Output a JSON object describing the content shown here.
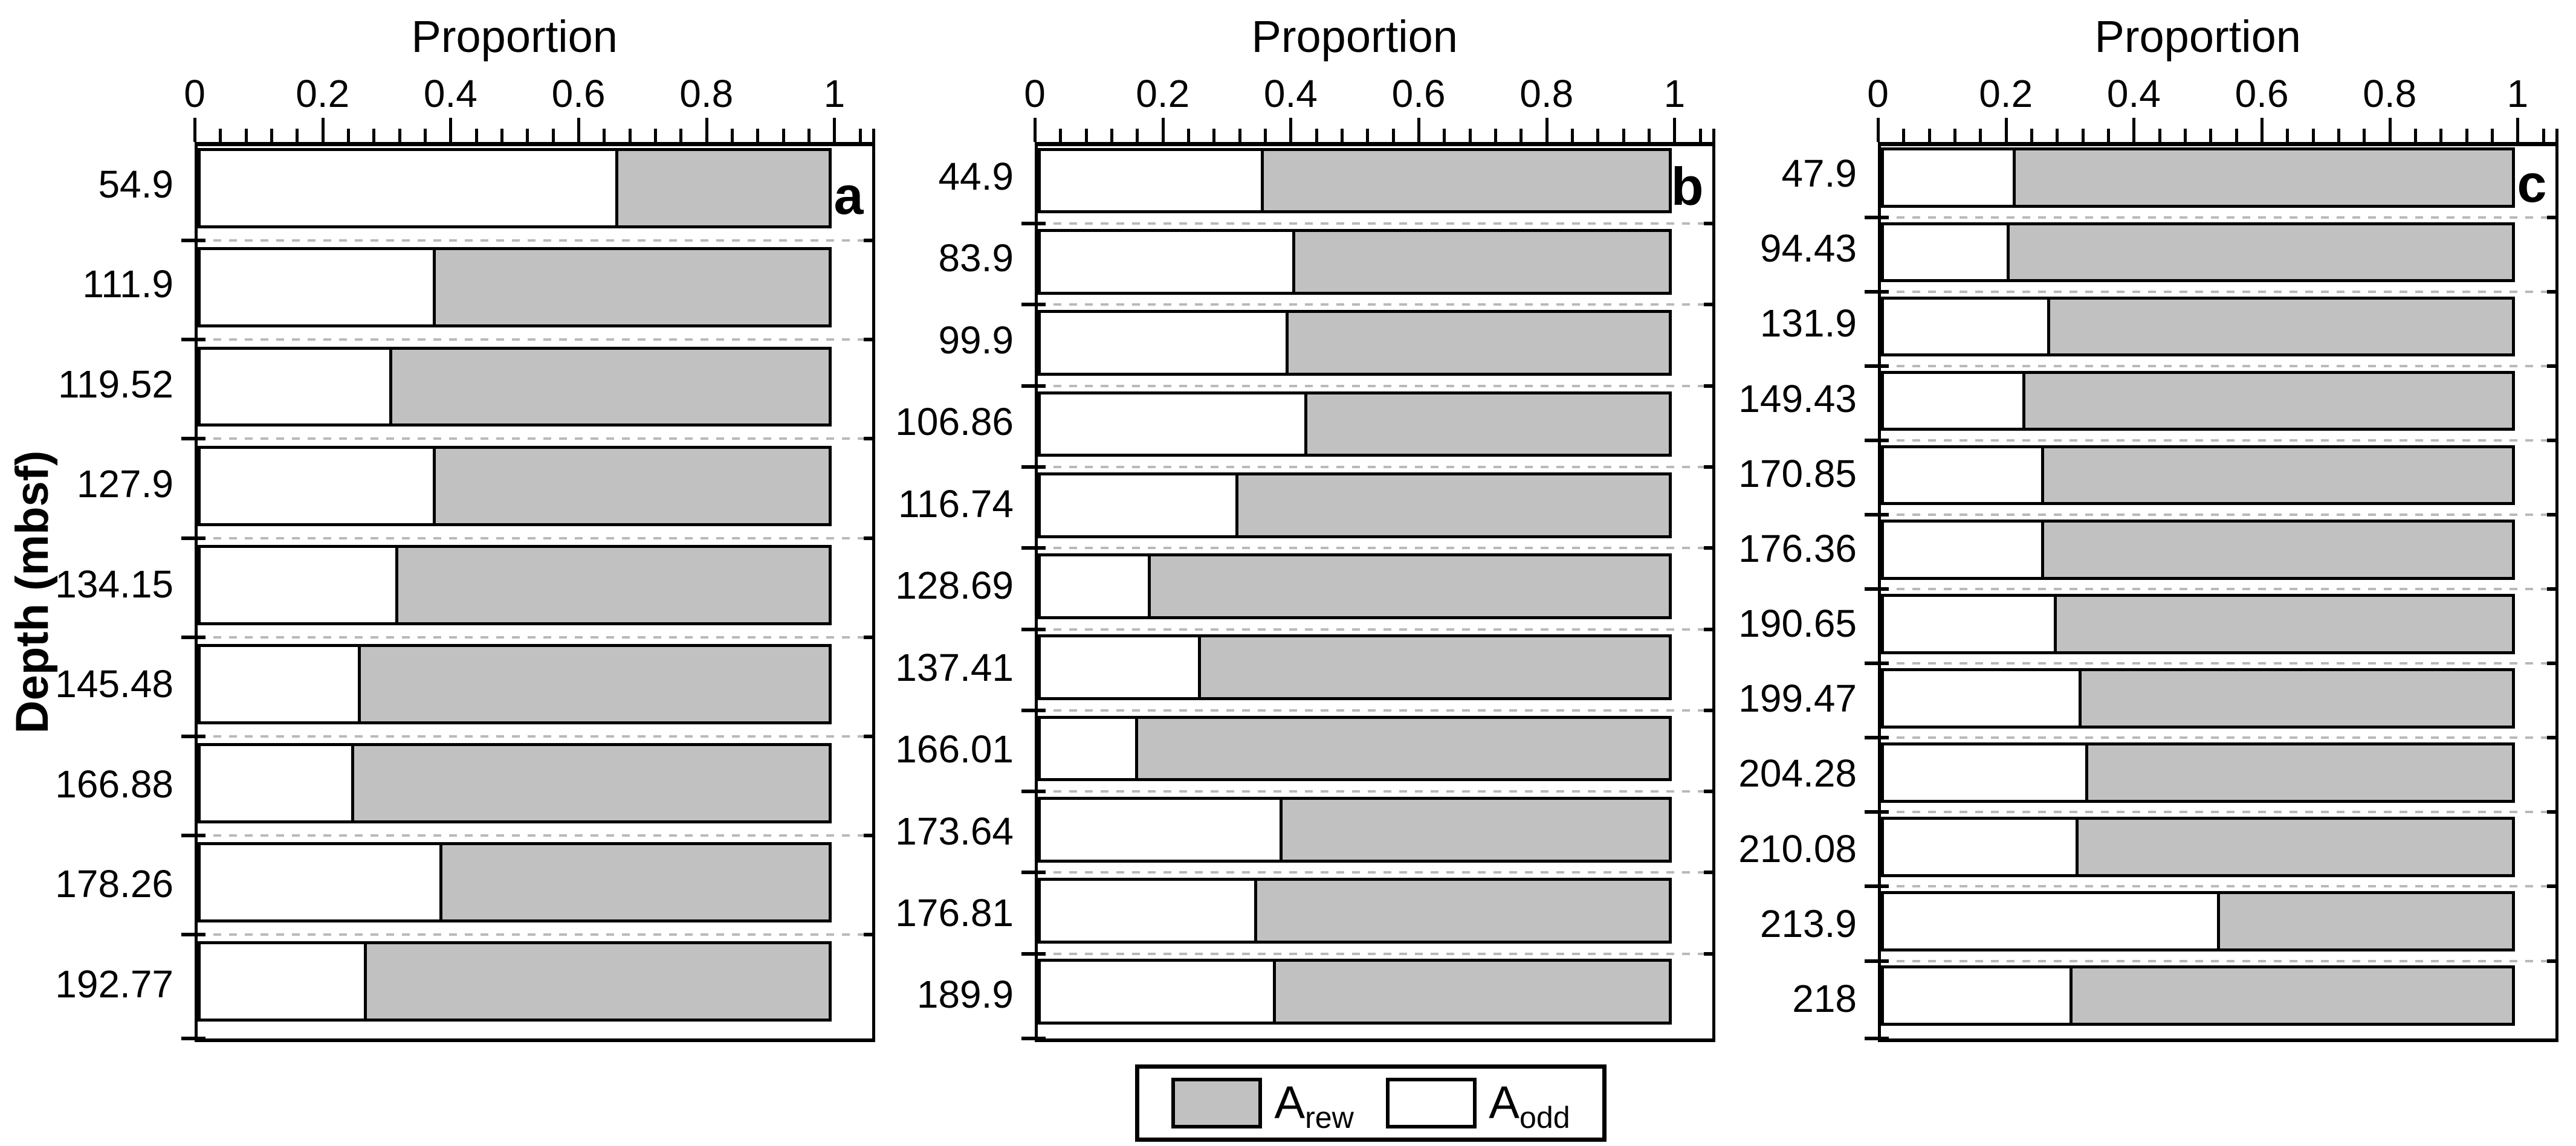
{
  "figure": {
    "background": "#ffffff",
    "colors": {
      "rew_fill": "#c1c1c1",
      "odd_fill": "#ffffff",
      "line": "#000000",
      "separator": "#b9b9b9"
    },
    "y_axis_label": "Depth (mbsf)",
    "legend": {
      "items": [
        {
          "main": "A",
          "sub": "rew",
          "fill": "#c1c1c1"
        },
        {
          "main": "A",
          "sub": "odd",
          "fill": "#ffffff"
        }
      ]
    }
  },
  "chart_data": [
    {
      "type": "bar",
      "orientation": "horizontal",
      "stacked": true,
      "panel_label": "a",
      "title": "Proportion",
      "ylabel": "Depth (mbsf)",
      "xlim": [
        0,
        1
      ],
      "x_ticks": [
        0,
        0.2,
        0.4,
        0.6,
        0.8,
        1
      ],
      "x_tick_labels": [
        "0",
        "0.2",
        "0.4",
        "0.6",
        "0.8",
        "1"
      ],
      "minor_tick_step": 0.04,
      "grid": "dashed row separators",
      "categories": [
        "54.9",
        "111.9",
        "119.52",
        "127.9",
        "134.15",
        "145.48",
        "166.88",
        "178.26",
        "192.77"
      ],
      "series": [
        {
          "name": "A_odd",
          "fill": "#ffffff",
          "values": [
            0.66,
            0.37,
            0.3,
            0.37,
            0.31,
            0.25,
            0.24,
            0.38,
            0.26
          ]
        },
        {
          "name": "A_rew",
          "fill": "#c1c1c1",
          "values": [
            0.34,
            0.63,
            0.7,
            0.63,
            0.69,
            0.75,
            0.76,
            0.62,
            0.74
          ]
        }
      ]
    },
    {
      "type": "bar",
      "orientation": "horizontal",
      "stacked": true,
      "panel_label": "b",
      "title": "Proportion",
      "ylabel": "Depth (mbsf)",
      "xlim": [
        0,
        1
      ],
      "x_ticks": [
        0,
        0.2,
        0.4,
        0.6,
        0.8,
        1
      ],
      "x_tick_labels": [
        "0",
        "0.2",
        "0.4",
        "0.6",
        "0.8",
        "1"
      ],
      "minor_tick_step": 0.04,
      "grid": "dashed row separators",
      "categories": [
        "44.9",
        "83.9",
        "99.9",
        "106.86",
        "116.74",
        "128.69",
        "137.41",
        "166.01",
        "173.64",
        "176.81",
        "189.9"
      ],
      "series": [
        {
          "name": "A_odd",
          "fill": "#ffffff",
          "values": [
            0.35,
            0.4,
            0.39,
            0.42,
            0.31,
            0.17,
            0.25,
            0.15,
            0.38,
            0.34,
            0.37
          ]
        },
        {
          "name": "A_rew",
          "fill": "#c1c1c1",
          "values": [
            0.65,
            0.6,
            0.61,
            0.58,
            0.69,
            0.83,
            0.75,
            0.85,
            0.62,
            0.66,
            0.63
          ]
        }
      ]
    },
    {
      "type": "bar",
      "orientation": "horizontal",
      "stacked": true,
      "panel_label": "c",
      "title": "Proportion",
      "ylabel": "Depth (mbsf)",
      "xlim": [
        0,
        1
      ],
      "x_ticks": [
        0,
        0.2,
        0.4,
        0.6,
        0.8,
        1
      ],
      "x_tick_labels": [
        "0",
        "0.2",
        "0.4",
        "0.6",
        "0.8",
        "1"
      ],
      "minor_tick_step": 0.04,
      "grid": "dashed row separators",
      "categories": [
        "47.9",
        "94.43",
        "131.9",
        "149.43",
        "170.85",
        "176.36",
        "190.65",
        "199.47",
        "204.28",
        "210.08",
        "213.9",
        "218"
      ],
      "series": [
        {
          "name": "A_odd",
          "fill": "#ffffff",
          "values": [
            0.205,
            0.195,
            0.26,
            0.22,
            0.25,
            0.25,
            0.27,
            0.31,
            0.32,
            0.305,
            0.53,
            0.295
          ]
        },
        {
          "name": "A_rew",
          "fill": "#c1c1c1",
          "values": [
            0.795,
            0.805,
            0.74,
            0.78,
            0.75,
            0.75,
            0.73,
            0.69,
            0.68,
            0.695,
            0.47,
            0.705
          ]
        }
      ]
    }
  ]
}
